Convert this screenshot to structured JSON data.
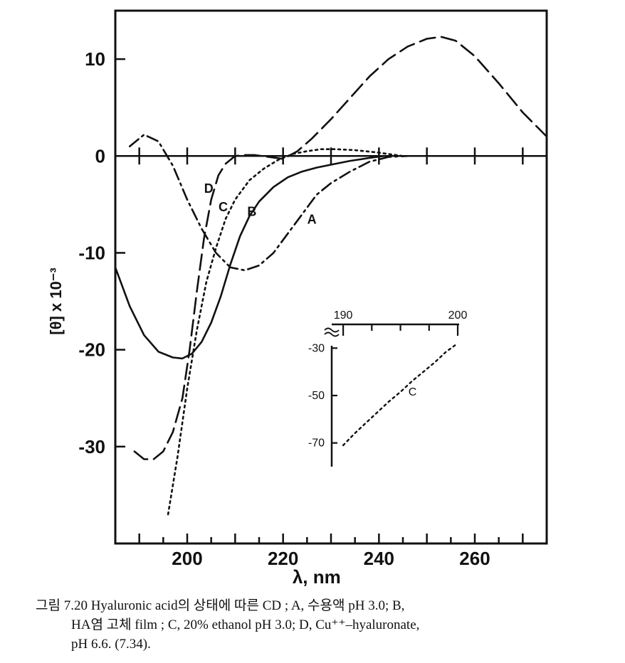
{
  "chart_data": {
    "type": "line",
    "xlabel": "λ, nm",
    "ylabel": "[θ] x 10⁻³",
    "xlim": [
      185,
      275
    ],
    "ylim": [
      -40,
      15
    ],
    "x_ticks": [
      "200",
      "220",
      "240",
      "260"
    ],
    "y_ticks": [
      "10",
      "0",
      "-10",
      "-20",
      "-30"
    ],
    "grid": false,
    "series": [
      {
        "name": "A",
        "style": "dash-dot",
        "x": [
          188,
          191,
          194,
          197,
          200,
          203,
          206,
          209,
          212,
          215,
          218,
          221,
          224,
          227,
          230,
          234,
          238,
          242,
          246
        ],
        "y": [
          1.0,
          2.2,
          1.5,
          -1.0,
          -4.5,
          -7.5,
          -10.0,
          -11.5,
          -11.8,
          -11.3,
          -10.0,
          -8.0,
          -6.0,
          -4.0,
          -2.8,
          -1.6,
          -0.6,
          -0.1,
          0.0
        ]
      },
      {
        "name": "B",
        "style": "solid",
        "x": [
          185,
          188,
          191,
          194,
          197,
          199,
          201,
          203,
          205,
          207,
          209,
          211,
          213,
          215,
          218,
          221,
          224,
          227,
          230,
          234,
          238,
          241
        ],
        "y": [
          -11.5,
          -15.5,
          -18.5,
          -20.2,
          -20.8,
          -20.9,
          -20.4,
          -19.2,
          -17.2,
          -14.5,
          -11.2,
          -8.3,
          -6.2,
          -4.7,
          -3.2,
          -2.2,
          -1.6,
          -1.2,
          -0.9,
          -0.5,
          -0.2,
          0.0
        ]
      },
      {
        "name": "C",
        "style": "dotted",
        "x": [
          196,
          198,
          200,
          202,
          204,
          206,
          208,
          210,
          213,
          216,
          219,
          222,
          225,
          228,
          231,
          235,
          239,
          242,
          245
        ],
        "y": [
          -37.0,
          -31.0,
          -24.0,
          -18.0,
          -13.0,
          -9.5,
          -6.5,
          -4.5,
          -2.5,
          -1.3,
          -0.4,
          0.2,
          0.5,
          0.7,
          0.7,
          0.6,
          0.4,
          0.2,
          0.0
        ]
      },
      {
        "name": "D",
        "style": "dashed",
        "x": [
          189,
          191,
          193,
          195,
          197,
          199,
          200.5,
          202,
          203.5,
          205,
          206.5,
          208,
          210,
          212,
          214,
          217,
          220,
          223,
          226,
          230,
          234,
          238,
          242,
          246,
          250,
          253,
          256,
          260,
          265,
          270,
          275
        ],
        "y": [
          -30.5,
          -31.3,
          -31.3,
          -30.5,
          -28.5,
          -25.0,
          -20.0,
          -14.0,
          -8.5,
          -4.5,
          -2.0,
          -0.8,
          0.0,
          0.1,
          0.1,
          -0.1,
          -0.3,
          0.5,
          1.8,
          3.8,
          6.0,
          8.2,
          10.0,
          11.3,
          12.1,
          12.3,
          11.9,
          10.3,
          7.5,
          4.5,
          2.0
        ]
      }
    ],
    "curve_labels": [
      "D",
      "C",
      "B",
      "A"
    ],
    "inset": {
      "type": "line",
      "x_ticks": [
        "190",
        "200"
      ],
      "y_ticks": [
        "-30",
        "-50",
        "-70"
      ],
      "xlim": [
        189,
        200
      ],
      "ylim": [
        -80,
        -20
      ],
      "series": [
        {
          "name": "C",
          "style": "dotted",
          "x": [
            190,
            191,
            192,
            193,
            194,
            195,
            196,
            197,
            198,
            199,
            200
          ],
          "y": [
            -71,
            -66,
            -61.5,
            -57,
            -52.5,
            -48.5,
            -44,
            -40,
            -36,
            -31.5,
            -28
          ]
        }
      ]
    }
  },
  "caption": {
    "line1": "그림 7.20  Hyaluronic acid의 상태에 따른 CD ;  A,  수용액 pH 3.0;  B,",
    "line2": "HA염 고체 film ;  C,  20%  ethanol pH 3.0;  D,  Cu⁺⁺–hyaluronate,",
    "line3": "pH 6.6.  (7.34)."
  }
}
